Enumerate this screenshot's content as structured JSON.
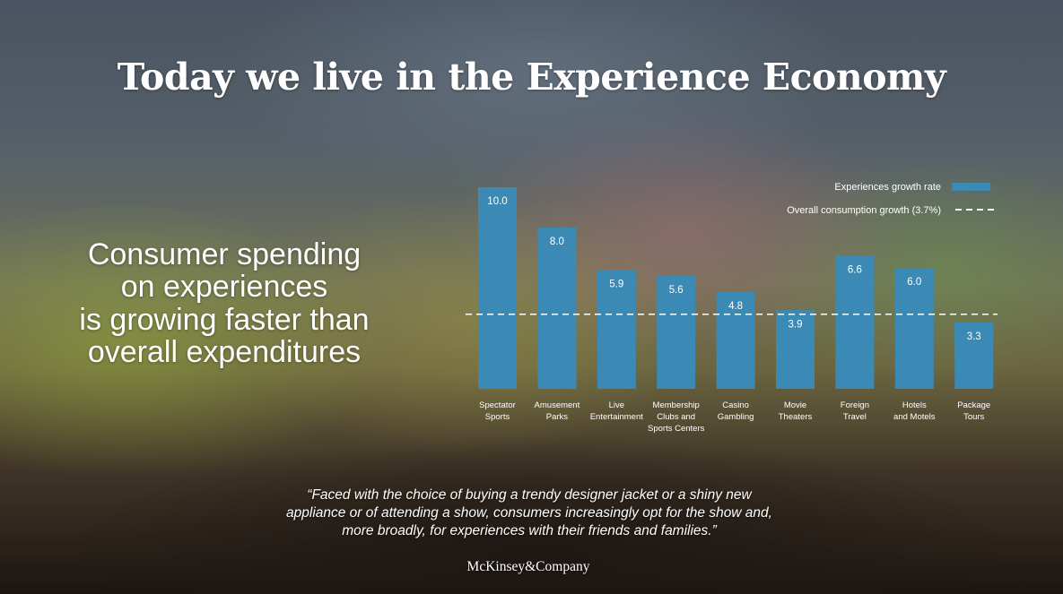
{
  "slide": {
    "title": "Today we live in the Experience Economy",
    "subtitle_lines": [
      "Consumer spending",
      "on experiences",
      "is growing faster than",
      "overall expenditures"
    ],
    "quote_lines": [
      "“Faced with the choice of buying a trendy designer jacket or a shiny new",
      "appliance or of attending a show, consumers increasingly opt for the show and,",
      "more broadly, for experiences with their friends and families.”"
    ],
    "brand": "McKinsey&Company"
  },
  "chart_data": {
    "type": "bar",
    "categories": [
      [
        "Spectator",
        "Sports"
      ],
      [
        "Amusement",
        "Parks"
      ],
      [
        "Live",
        "Entertainment"
      ],
      [
        "Membership",
        "Clubs and",
        "Sports Centers"
      ],
      [
        "Casino",
        "Gambling"
      ],
      [
        "Movie",
        "Theaters"
      ],
      [
        "Foreign",
        "Travel"
      ],
      [
        "Hotels",
        "and Motels"
      ],
      [
        "Package",
        "Tours"
      ]
    ],
    "series": [
      {
        "name": "Experiences growth rate",
        "values": [
          10.0,
          8.0,
          5.9,
          5.6,
          4.8,
          3.9,
          6.6,
          6.0,
          3.3
        ]
      }
    ],
    "value_labels": [
      "10.0",
      "8.0",
      "5.9",
      "5.6",
      "4.8",
      "3.9",
      "6.6",
      "6.0",
      "3.3"
    ],
    "reference_line": {
      "name": "Overall consumption growth (3.7%)",
      "value": 3.7,
      "style": "dashed"
    },
    "ylim": [
      0,
      10
    ],
    "legend_position": "top-right",
    "bar_color": "#3a8ab5",
    "axes_visible": false,
    "grid": false
  }
}
